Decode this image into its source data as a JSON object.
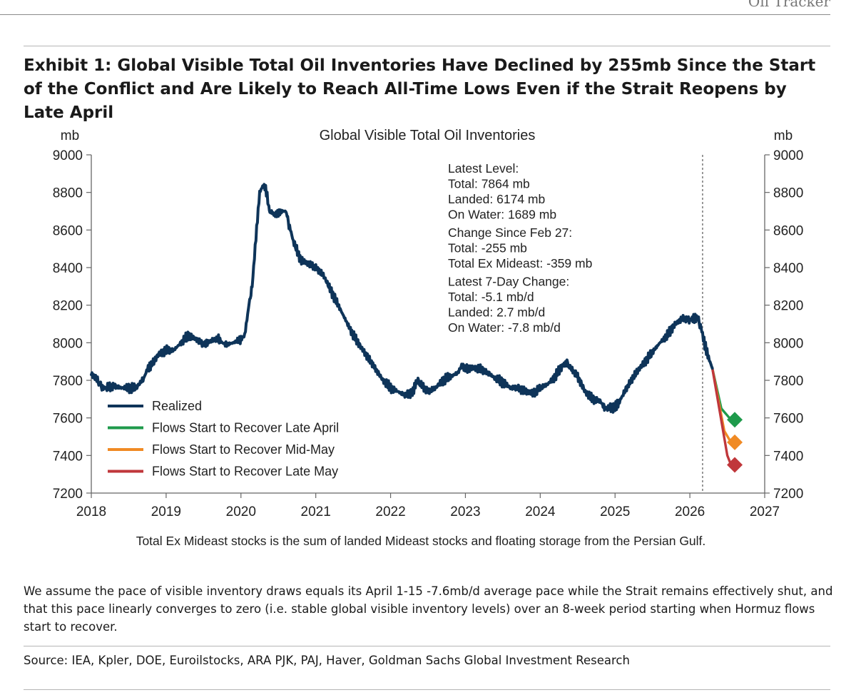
{
  "page": {
    "header_tag": "Oil Tracker",
    "exhibit_title": "Exhibit 1: Global Visible Total Oil Inventories Have Declined by 255mb Since the Start of the Conflict and Are Likely to Reach All-Time Lows Even if the Strait Reopens by Late April",
    "footnote": "We assume the pace of visible inventory draws equals its April 1-15 -7.6mb/d average pace while the Strait remains effectively shut, and that this pace linearly converges to zero (i.e. stable global visible inventory levels) over an 8-week period starting when Hormuz flows start to recover.",
    "source": "Source: IEA, Kpler, DOE, Euroilstocks, ARA PJK, PAJ, Haver, Goldman Sachs Global Investment Research"
  },
  "chart_data": {
    "type": "line",
    "title": "Global Visible Total Oil Inventories",
    "ylabel_left": "mb",
    "ylabel_right": "mb",
    "xlabel": "",
    "xlim": [
      2018,
      2027
    ],
    "ylim": [
      7200,
      9000
    ],
    "x_ticks": [
      2018,
      2019,
      2020,
      2021,
      2022,
      2023,
      2024,
      2025,
      2026,
      2027
    ],
    "y_ticks": [
      7200,
      7400,
      7600,
      7800,
      8000,
      8200,
      8400,
      8600,
      8800,
      9000
    ],
    "vline_x": 2026.17,
    "colors": {
      "realized": "#0e3459",
      "late_april": "#1e9a4b",
      "mid_may": "#f08a24",
      "late_may": "#c0373b",
      "axis": "#666666",
      "vline": "#555555"
    },
    "series": [
      {
        "name": "Realized",
        "key": "realized",
        "x": [
          2018.0,
          2018.04,
          2018.1,
          2018.15,
          2018.2,
          2018.3,
          2018.4,
          2018.5,
          2018.6,
          2018.7,
          2018.75,
          2018.8,
          2018.9,
          2019.0,
          2019.1,
          2019.2,
          2019.3,
          2019.4,
          2019.5,
          2019.55,
          2019.6,
          2019.7,
          2019.75,
          2019.8,
          2019.9,
          2020.0,
          2020.05,
          2020.1,
          2020.15,
          2020.2,
          2020.25,
          2020.3,
          2020.33,
          2020.36,
          2020.38,
          2020.4,
          2020.45,
          2020.5,
          2020.55,
          2020.6,
          2020.65,
          2020.7,
          2020.8,
          2020.9,
          2021.0,
          2021.1,
          2021.2,
          2021.3,
          2021.4,
          2021.5,
          2021.6,
          2021.7,
          2021.8,
          2021.9,
          2022.0,
          2022.1,
          2022.2,
          2022.3,
          2022.35,
          2022.4,
          2022.5,
          2022.6,
          2022.7,
          2022.8,
          2022.9,
          2022.95,
          2023.0,
          2023.1,
          2023.2,
          2023.3,
          2023.4,
          2023.5,
          2023.6,
          2023.7,
          2023.8,
          2023.9,
          2024.0,
          2024.1,
          2024.2,
          2024.3,
          2024.35,
          2024.4,
          2024.5,
          2024.6,
          2024.7,
          2024.8,
          2024.85,
          2024.9,
          2025.0,
          2025.05,
          2025.1,
          2025.2,
          2025.3,
          2025.4,
          2025.5,
          2025.6,
          2025.7,
          2025.8,
          2025.9,
          2026.0,
          2026.05,
          2026.1,
          2026.15,
          2026.2,
          2026.25,
          2026.3
        ],
        "values": [
          7830,
          7820,
          7790,
          7760,
          7760,
          7770,
          7760,
          7760,
          7760,
          7810,
          7860,
          7880,
          7940,
          7960,
          7960,
          8000,
          8040,
          8020,
          7990,
          8000,
          8010,
          8020,
          8000,
          7990,
          8000,
          8020,
          8040,
          8180,
          8300,
          8560,
          8800,
          8840,
          8820,
          8760,
          8720,
          8700,
          8680,
          8690,
          8700,
          8700,
          8620,
          8540,
          8440,
          8420,
          8400,
          8360,
          8280,
          8200,
          8120,
          8040,
          7980,
          7920,
          7860,
          7800,
          7760,
          7740,
          7720,
          7740,
          7800,
          7780,
          7740,
          7760,
          7800,
          7820,
          7840,
          7880,
          7860,
          7870,
          7860,
          7840,
          7810,
          7790,
          7760,
          7760,
          7740,
          7730,
          7760,
          7780,
          7820,
          7880,
          7890,
          7870,
          7820,
          7740,
          7700,
          7690,
          7660,
          7650,
          7660,
          7680,
          7720,
          7790,
          7850,
          7900,
          7950,
          8000,
          8040,
          8100,
          8130,
          8120,
          8130,
          8130,
          8080,
          7990,
          7920,
          7864
        ]
      },
      {
        "name": "Flows Start to Recover Late April",
        "key": "late_april",
        "x": [
          2026.3,
          2026.42,
          2026.55
        ],
        "values": [
          7864,
          7650,
          7590
        ]
      },
      {
        "name": "Flows Start to Recover Mid-May",
        "key": "mid_may",
        "x": [
          2026.3,
          2026.46,
          2026.55
        ],
        "values": [
          7864,
          7530,
          7470
        ]
      },
      {
        "name": "Flows Start to Recover Late May",
        "key": "late_may",
        "x": [
          2026.3,
          2026.5,
          2026.55
        ],
        "values": [
          7864,
          7400,
          7350
        ]
      }
    ],
    "endpoint_markers": [
      {
        "key": "late_april",
        "x": 2026.6,
        "value": 7590
      },
      {
        "key": "mid_may",
        "x": 2026.6,
        "value": 7470
      },
      {
        "key": "late_may",
        "x": 2026.6,
        "value": 7350
      }
    ],
    "legend": {
      "placement": "bottom-left",
      "entries": [
        {
          "label": "Realized",
          "key": "realized"
        },
        {
          "label": "Flows Start to Recover Late April",
          "key": "late_april"
        },
        {
          "label": "Flows Start to Recover Mid-May",
          "key": "mid_may"
        },
        {
          "label": "Flows Start to Recover Late May",
          "key": "late_may"
        }
      ]
    },
    "annotation": {
      "placement": "top-center",
      "lines": [
        "Latest Level:",
        "Total: 7864 mb",
        "Landed: 6174 mb",
        "On Water: 1689 mb",
        "Change Since Feb 27:",
        "Total: -255 mb",
        "Total Ex Mideast: -359 mb",
        "Latest 7-Day Change:",
        "Total: -5.1 mb/d",
        "Landed: 2.7 mb/d",
        "On Water: -7.8 mb/d"
      ]
    },
    "chart_note": "Total Ex Mideast stocks is the sum of landed Mideast stocks and floating storage from the Persian Gulf."
  }
}
